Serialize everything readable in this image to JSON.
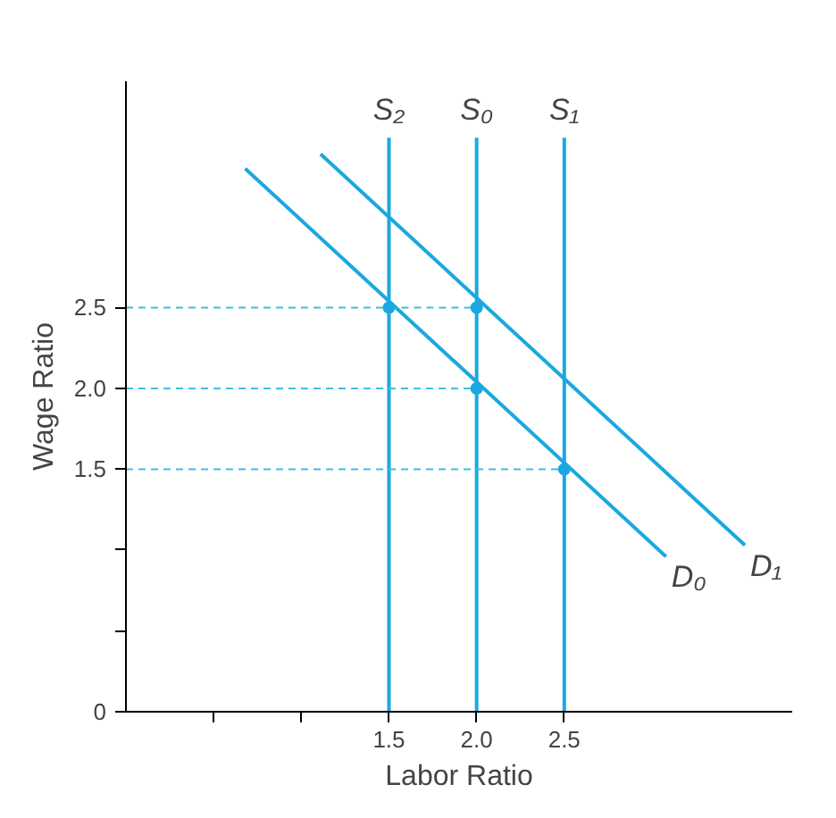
{
  "chart_data": {
    "type": "line",
    "xlabel": "Labor Ratio",
    "ylabel": "Wage Ratio",
    "xlim": [
      0,
      3.8
    ],
    "ylim": [
      0,
      3.9
    ],
    "xticks": [
      {
        "value": 0.5,
        "label": null
      },
      {
        "value": 1.0,
        "label": null
      },
      1.5,
      {
        "value": 2.0,
        "label": "2.0"
      },
      2.5
    ],
    "yticks": [
      0,
      {
        "value": 0.5,
        "label": null
      },
      {
        "value": 1.0,
        "label": null
      },
      1.5,
      {
        "value": 2.0,
        "label": "2.0"
      },
      2.5
    ],
    "grid": false,
    "marker": "none",
    "series": [
      {
        "name": "S₂",
        "color": "#1ba8e0",
        "x": [
          1.5,
          1.5
        ],
        "values": [
          3.55,
          0
        ]
      },
      {
        "name": "S₀",
        "color": "#1ba8e0",
        "x": [
          2.0,
          2.0
        ],
        "values": [
          3.55,
          0
        ]
      },
      {
        "name": "S₁",
        "color": "#1ba8e0",
        "x": [
          2.5,
          2.5
        ],
        "values": [
          3.55,
          0
        ]
      },
      {
        "name": "D₀",
        "color": "#1ba8e0",
        "x": [
          0.68,
          3.08
        ],
        "values": [
          3.36,
          0.96
        ]
      },
      {
        "name": "D₁",
        "color": "#1ba8e0",
        "x": [
          1.11,
          3.53
        ],
        "values": [
          3.45,
          1.03
        ]
      },
      {
        "color": "#3cc0e0",
        "line_style": "dashed",
        "x": [
          0,
          1.5
        ],
        "values": [
          2.5,
          2.5
        ]
      },
      {
        "color": "#3cc0e0",
        "line_style": "dashed",
        "x": [
          1.5,
          2.0
        ],
        "values": [
          2.5,
          2.5
        ]
      },
      {
        "color": "#3cc0e0",
        "line_style": "dashed",
        "x": [
          0,
          2.0
        ],
        "values": [
          2.0,
          2.0
        ]
      },
      {
        "color": "#3cc0e0",
        "line_style": "dashed",
        "x": [
          0,
          2.5
        ],
        "values": [
          1.5,
          1.5
        ]
      },
      {
        "type": "scatter",
        "marker": "circle",
        "color": "#1ba8e0",
        "x": [
          1.5,
          2.0,
          2.0,
          2.5
        ],
        "values": [
          2.5,
          2.5,
          2.0,
          1.5
        ]
      }
    ]
  }
}
